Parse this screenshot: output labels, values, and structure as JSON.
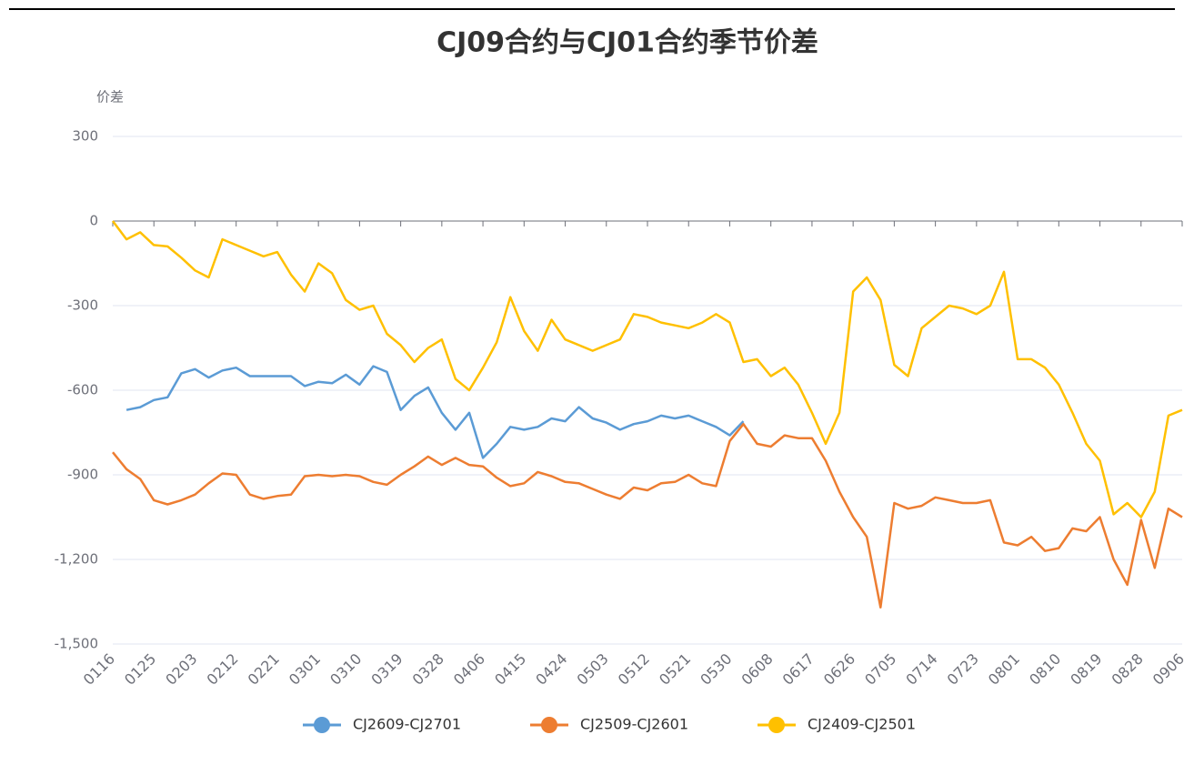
{
  "chart_data": {
    "type": "line",
    "title": "CJ09合约与CJ01合约季节价差",
    "y_axis_label": "价差",
    "categories": [
      "0116",
      null,
      null,
      "0125",
      null,
      null,
      "0203",
      null,
      null,
      "0212",
      null,
      null,
      "0221",
      null,
      null,
      "0301",
      null,
      null,
      "0310",
      null,
      null,
      "0319",
      null,
      null,
      "0328",
      null,
      null,
      "0406",
      null,
      null,
      "0415",
      null,
      null,
      "0424",
      null,
      null,
      "0503",
      null,
      null,
      "0512",
      null,
      null,
      "0521",
      null,
      null,
      "0530",
      null,
      null,
      "0608",
      null,
      null,
      "0617",
      null,
      null,
      "0626",
      null,
      null,
      "0705",
      null,
      null,
      "0714",
      null,
      null,
      "0723",
      null,
      null,
      "0801",
      null,
      null,
      "0810",
      null,
      null,
      "0819",
      null,
      null,
      "0828",
      null,
      null,
      "0906"
    ],
    "series": [
      {
        "name": "CJ2609-CJ2701",
        "color": "#5b9bd5",
        "values": [
          null,
          -670,
          -660,
          -635,
          -625,
          -540,
          -525,
          -555,
          -530,
          -520,
          -550,
          -550,
          -550,
          -550,
          -585,
          -570,
          -575,
          -545,
          -580,
          -515,
          -535,
          -670,
          -620,
          -590,
          -680,
          -740,
          -680,
          -840,
          -790,
          -730,
          -740,
          -730,
          -700,
          -710,
          -660,
          -700,
          -715,
          -740,
          -720,
          -710,
          -690,
          -700,
          -690,
          -710,
          -730,
          -760,
          -710,
          null,
          null,
          null,
          null,
          null,
          null,
          null,
          null,
          null,
          null,
          null,
          null,
          null,
          null,
          null,
          null,
          null,
          null,
          null,
          null,
          null,
          null,
          null,
          null,
          null,
          null,
          null,
          null,
          null,
          null,
          null,
          null
        ]
      },
      {
        "name": "CJ2509-CJ2601",
        "color": "#ed7d31",
        "values": [
          -820,
          -880,
          -915,
          -990,
          -1005,
          -990,
          -970,
          -930,
          -895,
          -900,
          -970,
          -985,
          -975,
          -970,
          -905,
          -900,
          -905,
          -900,
          -905,
          -925,
          -935,
          -900,
          -870,
          -835,
          -865,
          -840,
          -865,
          -870,
          -910,
          -940,
          -930,
          -890,
          -905,
          -925,
          -930,
          -950,
          -970,
          -985,
          -945,
          -955,
          -930,
          -925,
          -900,
          -930,
          -940,
          -780,
          -720,
          -790,
          -800,
          -760,
          -770,
          -770,
          -850,
          -960,
          -1050,
          -1120,
          -1370,
          -1000,
          -1020,
          -1010,
          -980,
          -990,
          -1000,
          -1000,
          -990,
          -1140,
          -1150,
          -1120,
          -1170,
          -1160,
          -1090,
          -1100,
          -1050,
          -1200,
          -1290,
          -1060,
          -1230,
          -1020,
          -1050
        ]
      },
      {
        "name": "CJ2409-CJ2501",
        "color": "#ffc000",
        "values": [
          0,
          -65,
          -40,
          -85,
          -90,
          -130,
          -175,
          -200,
          -65,
          -85,
          -105,
          -125,
          -110,
          -190,
          -250,
          -150,
          -185,
          -280,
          -315,
          -300,
          -400,
          -440,
          -500,
          -450,
          -420,
          -560,
          -600,
          -520,
          -430,
          -270,
          -390,
          -460,
          -350,
          -420,
          -440,
          -460,
          -440,
          -420,
          -330,
          -340,
          -360,
          -370,
          -380,
          -360,
          -330,
          -360,
          -500,
          -490,
          -550,
          -520,
          -580,
          -680,
          -790,
          -680,
          -250,
          -200,
          -280,
          -510,
          -550,
          -380,
          -340,
          -300,
          -310,
          -330,
          -300,
          -180,
          -490,
          -490,
          -520,
          -580,
          -680,
          -790,
          -850,
          -1040,
          -1000,
          -1050,
          -960,
          -690,
          -670
        ]
      }
    ],
    "ylim": [
      -1500,
      300
    ],
    "yticks": [
      {
        "value": -1500,
        "label": "-1,500"
      },
      {
        "value": -1200,
        "label": "-1,200"
      },
      -900,
      -600,
      -300,
      0,
      300
    ],
    "grid": true,
    "legend": "bottom"
  }
}
